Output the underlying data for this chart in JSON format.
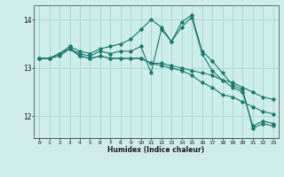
{
  "xlabel": "Humidex (Indice chaleur)",
  "ylabel": "",
  "background_color": "#cdecea",
  "grid_color": "#a8d8d4",
  "line_color": "#1a7a6e",
  "xlim": [
    -0.5,
    23.5
  ],
  "ylim": [
    11.55,
    14.3
  ],
  "yticks": [
    12,
    13,
    14
  ],
  "xticks": [
    0,
    1,
    2,
    3,
    4,
    5,
    6,
    7,
    8,
    9,
    10,
    11,
    12,
    13,
    14,
    15,
    16,
    17,
    18,
    19,
    20,
    21,
    22,
    23
  ],
  "lines": [
    [
      13.2,
      13.2,
      13.3,
      13.45,
      13.35,
      13.3,
      13.4,
      13.45,
      13.5,
      13.6,
      13.8,
      14.0,
      13.85,
      13.55,
      13.95,
      14.1,
      13.35,
      13.15,
      12.9,
      12.65,
      12.55,
      11.75,
      11.85,
      11.8
    ],
    [
      13.2,
      13.2,
      13.25,
      13.4,
      13.3,
      13.25,
      13.35,
      13.3,
      13.35,
      13.35,
      13.45,
      12.9,
      13.8,
      13.55,
      13.85,
      14.05,
      13.3,
      12.95,
      12.75,
      12.6,
      12.5,
      11.8,
      11.9,
      11.85
    ],
    [
      13.2,
      13.2,
      13.3,
      13.4,
      13.25,
      13.2,
      13.25,
      13.2,
      13.2,
      13.2,
      13.2,
      13.1,
      13.1,
      13.05,
      13.0,
      12.95,
      12.9,
      12.85,
      12.75,
      12.7,
      12.6,
      12.5,
      12.4,
      12.35
    ],
    [
      13.2,
      13.2,
      13.3,
      13.4,
      13.25,
      13.2,
      13.25,
      13.2,
      13.2,
      13.2,
      13.2,
      13.1,
      13.05,
      13.0,
      12.95,
      12.85,
      12.7,
      12.6,
      12.45,
      12.4,
      12.3,
      12.2,
      12.1,
      12.05
    ]
  ]
}
